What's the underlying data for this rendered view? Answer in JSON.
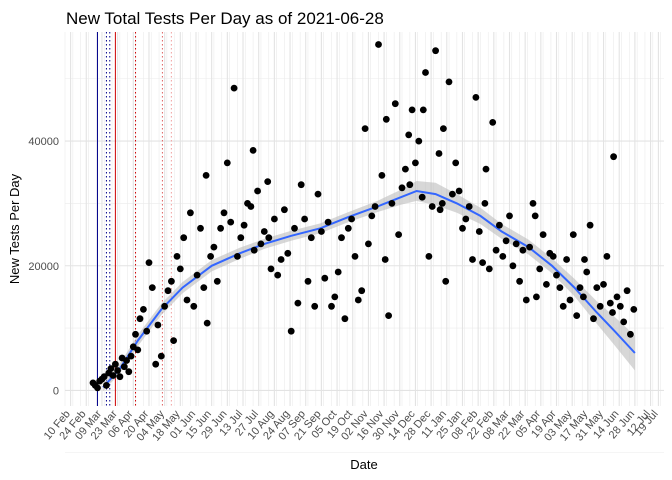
{
  "chart_data": {
    "type": "scatter",
    "title": "New Total Tests Per Day as of 2021-06-28",
    "xlabel": "Date",
    "ylabel": "New Tests Per Day",
    "xlim": [
      "2020-02-05",
      "2021-07-24"
    ],
    "ylim": [
      -2500,
      57500
    ],
    "grid": true,
    "legend": "none",
    "y_ticks": [
      0,
      20000,
      40000
    ],
    "x_ticks": [
      "2020-02-10",
      "2020-02-24",
      "2020-03-09",
      "2020-03-23",
      "2020-04-06",
      "2020-04-20",
      "2020-05-04",
      "2020-05-18",
      "2020-06-01",
      "2020-06-15",
      "2020-06-29",
      "2020-07-13",
      "2020-07-27",
      "2020-08-10",
      "2020-08-24",
      "2020-09-07",
      "2020-09-21",
      "2020-10-05",
      "2020-10-19",
      "2020-11-02",
      "2020-11-16",
      "2020-11-30",
      "2020-12-14",
      "2020-12-28",
      "2021-01-11",
      "2021-01-25",
      "2021-02-08",
      "2021-02-22",
      "2021-03-08",
      "2021-03-22",
      "2021-04-05",
      "2021-04-19",
      "2021-05-03",
      "2021-05-17",
      "2021-05-31",
      "2021-06-14",
      "2021-06-28",
      "2021-07-12",
      "2021-07-19"
    ],
    "x_tick_labels": [
      "10 Feb",
      "24 Feb",
      "09 Mar",
      "23 Mar",
      "06 Apr",
      "20 Apr",
      "04 May",
      "18 May",
      "01 Jun",
      "15 Jun",
      "29 Jun",
      "13 Jul",
      "27 Jul",
      "10 Aug",
      "24 Aug",
      "07 Sep",
      "21 Sep",
      "05 Oct",
      "19 Oct",
      "02 Nov",
      "16 Nov",
      "30 Nov",
      "14 Dec",
      "28 Dec",
      "11 Jan",
      "25 Jan",
      "08 Feb",
      "22 Feb",
      "08 Mar",
      "22 Mar",
      "05 Apr",
      "19 Apr",
      "03 May",
      "17 May",
      "31 May",
      "14 Jun",
      "28 Jun",
      "12 Jul",
      "19 Jul"
    ],
    "vlines": [
      {
        "x": "2020-03-05",
        "color": "#00008b",
        "style": "solid"
      },
      {
        "x": "2020-03-13",
        "color": "#00008b",
        "style": "dotted"
      },
      {
        "x": "2020-03-16",
        "color": "#00008b",
        "style": "dotted"
      },
      {
        "x": "2020-03-21",
        "color": "#cc0000",
        "style": "solid"
      },
      {
        "x": "2020-04-08",
        "color": "#cc0000",
        "style": "dotted"
      },
      {
        "x": "2020-05-02",
        "color": "#e06060",
        "style": "dotted"
      },
      {
        "x": "2020-05-10",
        "color": "#f0a0a0",
        "style": "dotted"
      }
    ],
    "smooth": {
      "color": "#3366ff",
      "band_color": "#bdbdbd",
      "x": [
        "2020-03-10",
        "2020-03-25",
        "2020-04-10",
        "2020-05-01",
        "2020-05-20",
        "2020-06-15",
        "2020-07-10",
        "2020-08-01",
        "2020-08-25",
        "2020-09-20",
        "2020-10-15",
        "2020-11-10",
        "2020-12-01",
        "2020-12-15",
        "2021-01-01",
        "2021-01-20",
        "2021-02-10",
        "2021-03-01",
        "2021-03-25",
        "2021-04-15",
        "2021-05-05",
        "2021-05-25",
        "2021-06-10",
        "2021-06-28"
      ],
      "y": [
        500,
        3500,
        8000,
        13000,
        16500,
        20000,
        22000,
        23500,
        24800,
        26000,
        27800,
        29500,
        31000,
        32000,
        31500,
        30000,
        28000,
        25500,
        23000,
        20000,
        16500,
        12500,
        9500,
        6000
      ],
      "band": [
        600,
        800,
        900,
        900,
        900,
        900,
        900,
        800,
        800,
        800,
        800,
        900,
        1200,
        1600,
        1800,
        1500,
        1300,
        1200,
        1200,
        1200,
        1400,
        1800,
        2300,
        2800
      ]
    },
    "points": {
      "color": "#000000",
      "x": [
        "2020-03-01",
        "2020-03-03",
        "2020-03-05",
        "2020-03-07",
        "2020-03-09",
        "2020-03-11",
        "2020-03-13",
        "2020-03-15",
        "2020-03-17",
        "2020-03-19",
        "2020-03-21",
        "2020-03-23",
        "2020-03-25",
        "2020-03-27",
        "2020-03-29",
        "2020-03-31",
        "2020-04-02",
        "2020-04-04",
        "2020-04-06",
        "2020-04-08",
        "2020-04-10",
        "2020-04-12",
        "2020-04-15",
        "2020-04-18",
        "2020-04-20",
        "2020-04-23",
        "2020-04-26",
        "2020-04-28",
        "2020-05-01",
        "2020-05-04",
        "2020-05-07",
        "2020-05-10",
        "2020-05-12",
        "2020-05-15",
        "2020-05-18",
        "2020-05-21",
        "2020-05-24",
        "2020-05-27",
        "2020-05-30",
        "2020-06-02",
        "2020-06-05",
        "2020-06-08",
        "2020-06-11",
        "2020-06-14",
        "2020-06-17",
        "2020-06-20",
        "2020-06-23",
        "2020-06-26",
        "2020-06-29",
        "2020-07-02",
        "2020-07-05",
        "2020-07-08",
        "2020-07-11",
        "2020-07-14",
        "2020-07-17",
        "2020-07-20",
        "2020-07-23",
        "2020-07-26",
        "2020-07-29",
        "2020-08-01",
        "2020-08-04",
        "2020-08-07",
        "2020-08-10",
        "2020-08-13",
        "2020-08-16",
        "2020-08-19",
        "2020-08-22",
        "2020-08-25",
        "2020-08-28",
        "2020-08-31",
        "2020-09-03",
        "2020-09-06",
        "2020-09-09",
        "2020-09-12",
        "2020-09-15",
        "2020-09-18",
        "2020-09-21",
        "2020-09-24",
        "2020-09-27",
        "2020-09-30",
        "2020-10-03",
        "2020-10-06",
        "2020-10-09",
        "2020-10-12",
        "2020-10-15",
        "2020-10-18",
        "2020-10-21",
        "2020-10-24",
        "2020-10-27",
        "2020-10-30",
        "2020-11-02",
        "2020-11-05",
        "2020-11-08",
        "2020-11-11",
        "2020-11-14",
        "2020-11-17",
        "2020-11-20",
        "2020-11-23",
        "2020-11-26",
        "2020-11-29",
        "2020-12-02",
        "2020-12-05",
        "2020-12-08",
        "2020-12-11",
        "2020-12-14",
        "2020-12-17",
        "2020-12-20",
        "2020-12-23",
        "2020-12-26",
        "2020-12-29",
        "2021-01-01",
        "2021-01-04",
        "2021-01-07",
        "2021-01-10",
        "2021-01-13",
        "2021-01-16",
        "2021-01-19",
        "2021-01-22",
        "2021-01-25",
        "2021-01-28",
        "2021-01-31",
        "2021-02-03",
        "2021-02-06",
        "2021-02-09",
        "2021-02-12",
        "2021-02-15",
        "2021-02-18",
        "2021-02-21",
        "2021-02-24",
        "2021-02-27",
        "2021-03-02",
        "2021-03-05",
        "2021-03-08",
        "2021-03-11",
        "2021-03-14",
        "2021-03-17",
        "2021-03-20",
        "2021-03-23",
        "2021-03-26",
        "2021-03-29",
        "2021-04-01",
        "2021-04-04",
        "2021-04-07",
        "2021-04-10",
        "2021-04-13",
        "2021-04-16",
        "2021-04-19",
        "2021-04-22",
        "2021-04-25",
        "2021-04-28",
        "2021-05-01",
        "2021-05-04",
        "2021-05-07",
        "2021-05-10",
        "2021-05-13",
        "2021-05-16",
        "2021-05-19",
        "2021-05-22",
        "2021-05-25",
        "2021-05-28",
        "2021-05-31",
        "2021-06-03",
        "2021-06-06",
        "2021-06-09",
        "2021-06-12",
        "2021-06-15",
        "2021-06-18",
        "2021-06-21",
        "2021-06-24",
        "2021-06-27",
        "2020-06-10",
        "2020-07-22",
        "2020-08-05",
        "2020-11-18",
        "2020-12-09",
        "2020-12-21",
        "2021-01-05",
        "2021-01-08",
        "2021-02-14",
        "2021-03-31",
        "2021-05-14",
        "2021-06-08"
      ],
      "y": [
        1200,
        800,
        400,
        1500,
        1800,
        2200,
        800,
        2800,
        3500,
        2400,
        4200,
        3200,
        2200,
        5200,
        3800,
        4800,
        3000,
        5500,
        7000,
        9000,
        6500,
        11500,
        13000,
        9500,
        20500,
        16500,
        4200,
        10500,
        5500,
        13500,
        16000,
        17500,
        8000,
        21500,
        19500,
        24500,
        14500,
        28500,
        13500,
        18500,
        26000,
        16500,
        10800,
        21500,
        23000,
        17500,
        26000,
        28500,
        36500,
        27000,
        48500,
        21500,
        24500,
        26500,
        30000,
        29500,
        22500,
        32000,
        23500,
        25500,
        33500,
        19500,
        27500,
        18500,
        21000,
        29000,
        22000,
        9500,
        26000,
        14000,
        33000,
        27500,
        17500,
        24500,
        13500,
        31500,
        25500,
        18000,
        27000,
        13500,
        15000,
        19000,
        24500,
        11500,
        26000,
        27500,
        21500,
        14500,
        16000,
        42000,
        23500,
        28000,
        29500,
        55500,
        34500,
        21000,
        12000,
        30000,
        46000,
        25000,
        32500,
        35500,
        41000,
        45000,
        36500,
        40000,
        31000,
        51000,
        21500,
        29500,
        54500,
        38000,
        30000,
        17500,
        49500,
        31500,
        36500,
        32000,
        26000,
        27500,
        29500,
        21000,
        47000,
        25500,
        20500,
        35500,
        19500,
        43000,
        22500,
        26500,
        21500,
        24000,
        28000,
        20000,
        23500,
        17500,
        22500,
        14500,
        23000,
        30000,
        15000,
        19500,
        25000,
        17000,
        22000,
        21500,
        18500,
        16500,
        13500,
        21000,
        14500,
        25000,
        12000,
        16500,
        15000,
        19000,
        26500,
        11500,
        16500,
        13500,
        17000,
        21500,
        14000,
        37500,
        15000,
        13500,
        11000,
        16000,
        9000,
        13000,
        34500,
        38500,
        24500,
        43500,
        33000,
        45000,
        29000,
        42000,
        30000,
        28000,
        21000,
        12500
      ]
    }
  }
}
